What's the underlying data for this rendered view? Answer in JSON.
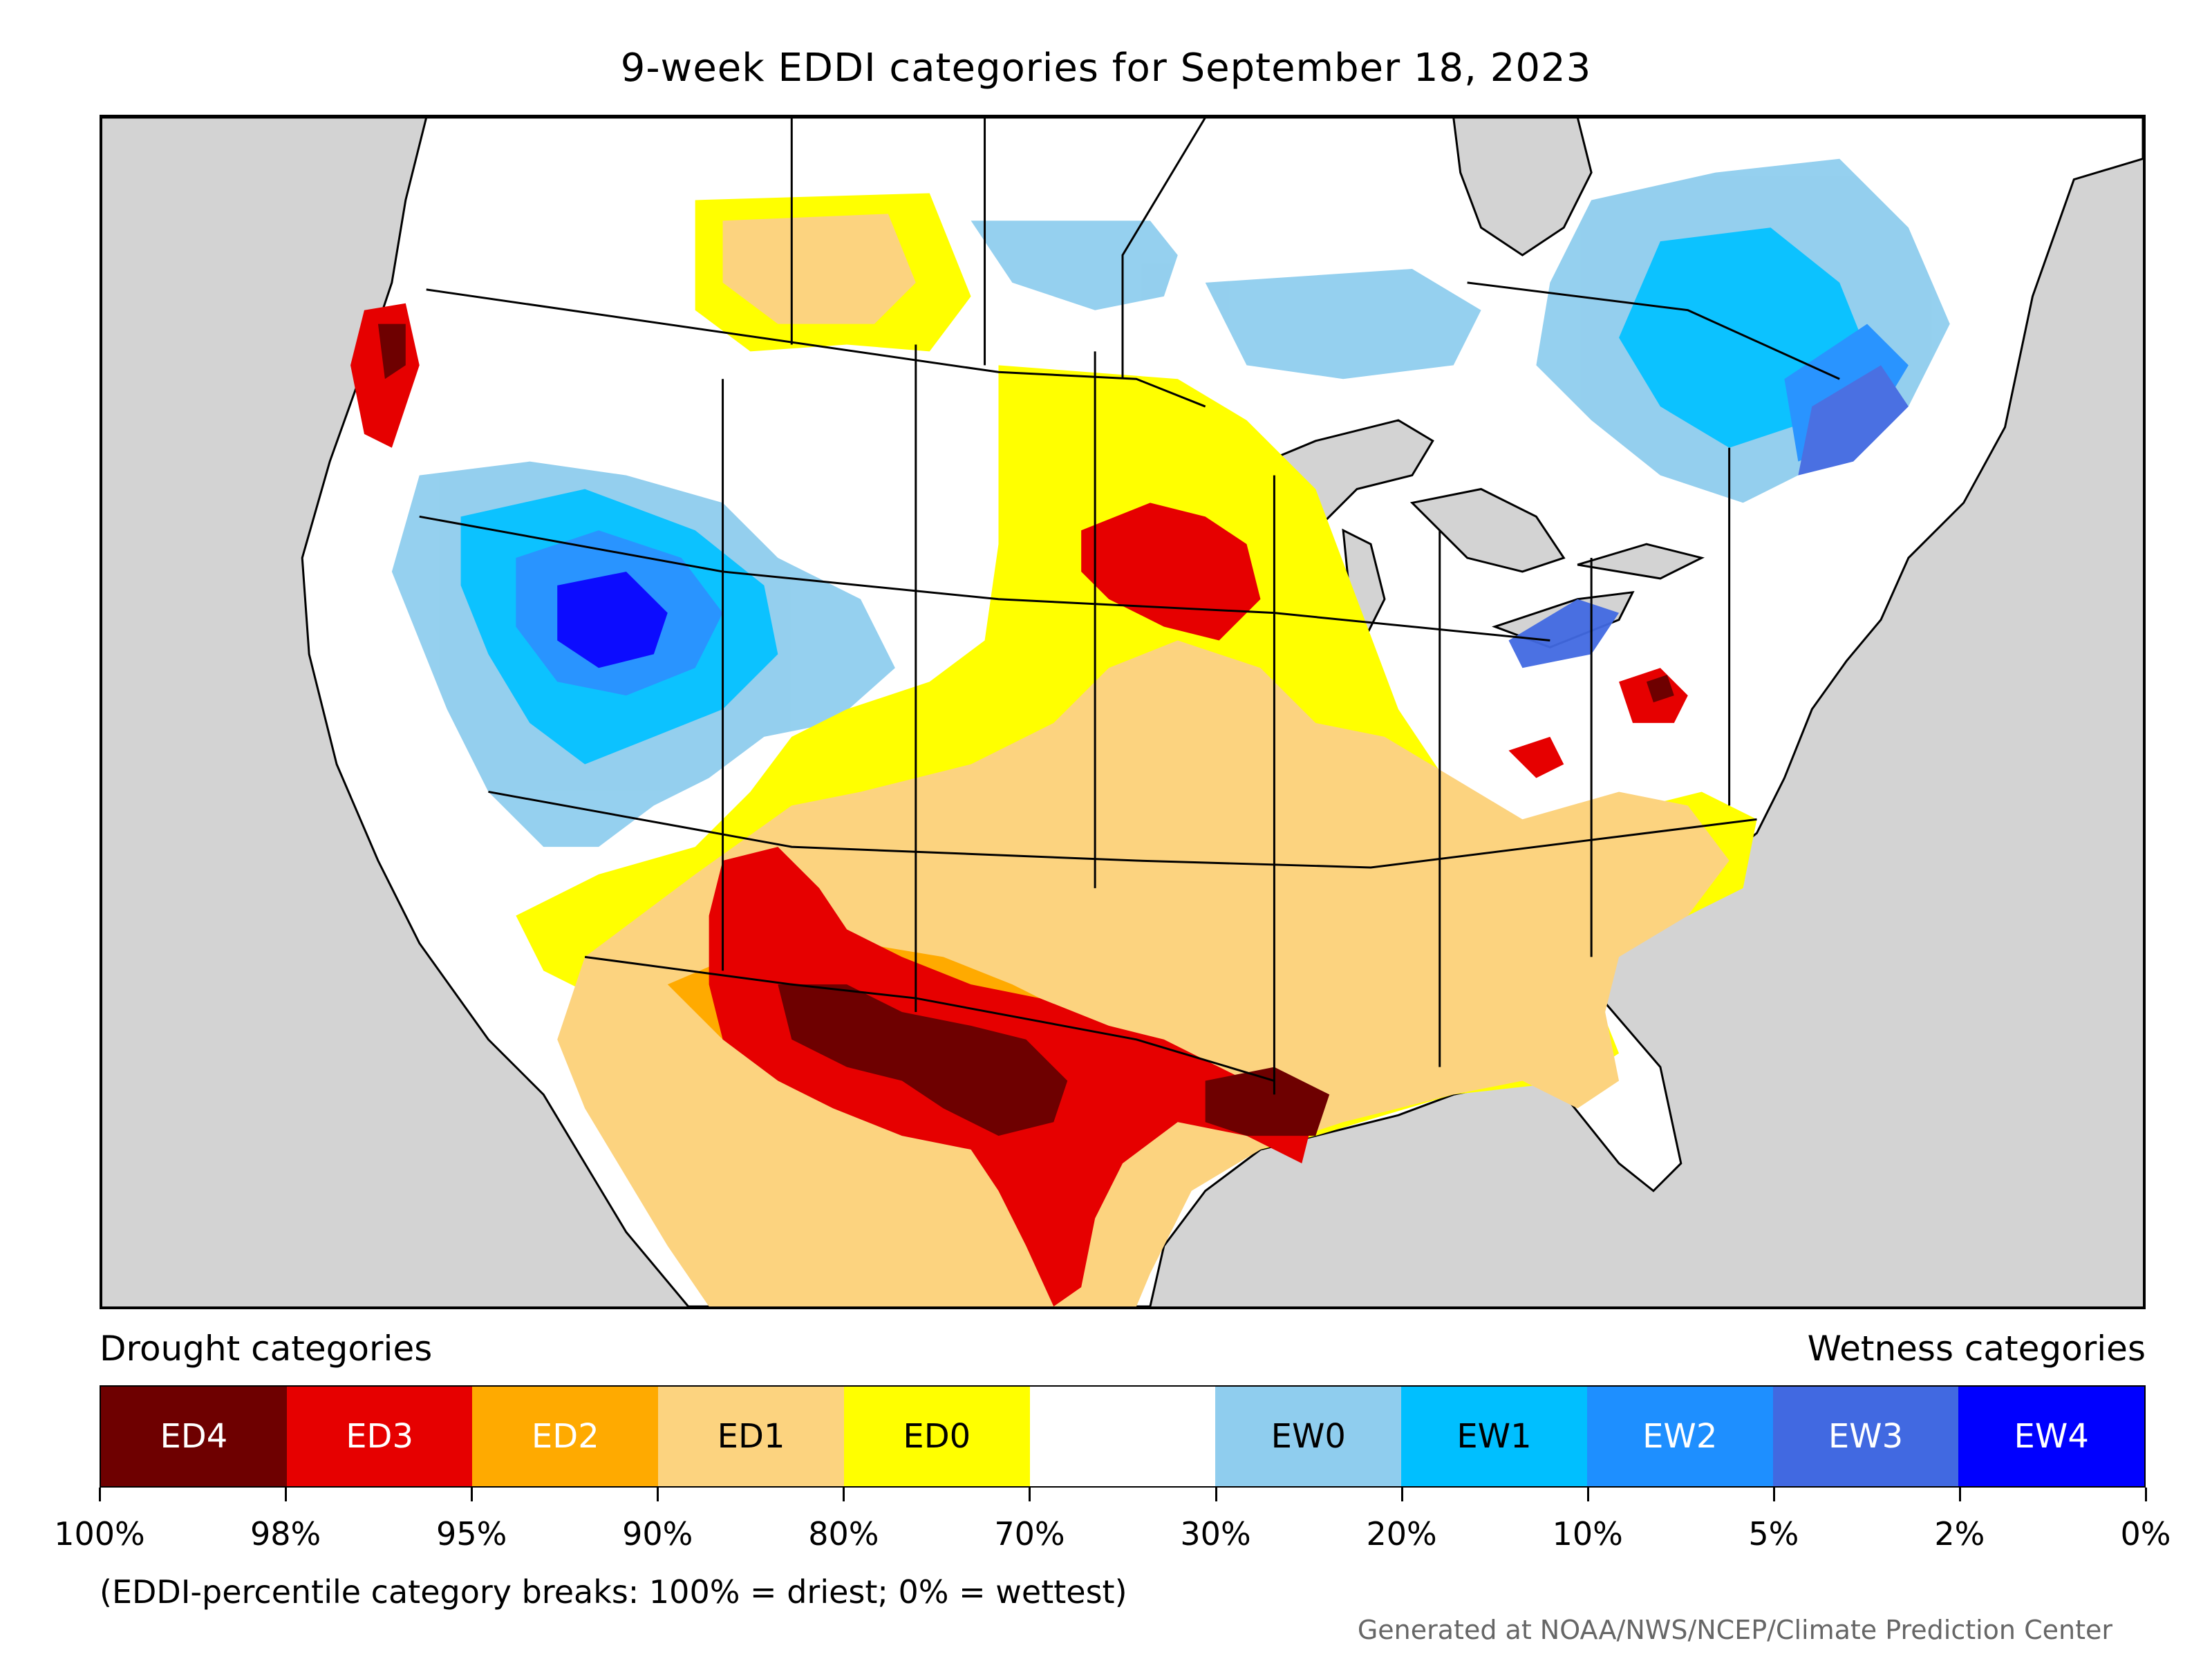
{
  "title": "9-week EDDI categories for September 18, 2023",
  "map": {
    "region": "contiguous United States and southern Canada",
    "colors": {
      "ED4": "#6e0000",
      "ED3": "#e60000",
      "ED2": "#ffaa00",
      "ED1": "#fcd37f",
      "ED0": "#ffff00",
      "neutral": "#ffffff",
      "EW0": "#8fcdee",
      "EW1": "#00bfff",
      "EW2": "#1e8fff",
      "EW3": "#4169e1",
      "EW4": "#0000ff",
      "ocean": "#d3d3d3"
    }
  },
  "legend": {
    "drought_heading": "Drought categories",
    "wetness_heading": "Wetness categories",
    "categories": [
      {
        "label": "ED4",
        "color": "#6e0000",
        "text_color": "#ffffff"
      },
      {
        "label": "ED3",
        "color": "#e60000",
        "text_color": "#ffffff"
      },
      {
        "label": "ED2",
        "color": "#ffaa00",
        "text_color": "#ffffff"
      },
      {
        "label": "ED1",
        "color": "#fcd37f",
        "text_color": "#000000"
      },
      {
        "label": "ED0",
        "color": "#ffff00",
        "text_color": "#000000"
      },
      {
        "label": "",
        "color": "#ffffff",
        "text_color": "#000000"
      },
      {
        "label": "EW0",
        "color": "#8fcdee",
        "text_color": "#000000"
      },
      {
        "label": "EW1",
        "color": "#00bfff",
        "text_color": "#000000"
      },
      {
        "label": "EW2",
        "color": "#1e8fff",
        "text_color": "#ffffff"
      },
      {
        "label": "EW3",
        "color": "#4169e1",
        "text_color": "#ffffff"
      },
      {
        "label": "EW4",
        "color": "#0000ff",
        "text_color": "#ffffff"
      }
    ],
    "tick_labels": [
      "100%",
      "98%",
      "95%",
      "90%",
      "80%",
      "70%",
      "30%",
      "20%",
      "10%",
      "5%",
      "2%",
      "0%"
    ]
  },
  "note": "(EDDI-percentile category breaks: 100% = driest; 0% = wettest)",
  "credit": "Generated at NOAA/NWS/NCEP/Climate Prediction Center"
}
